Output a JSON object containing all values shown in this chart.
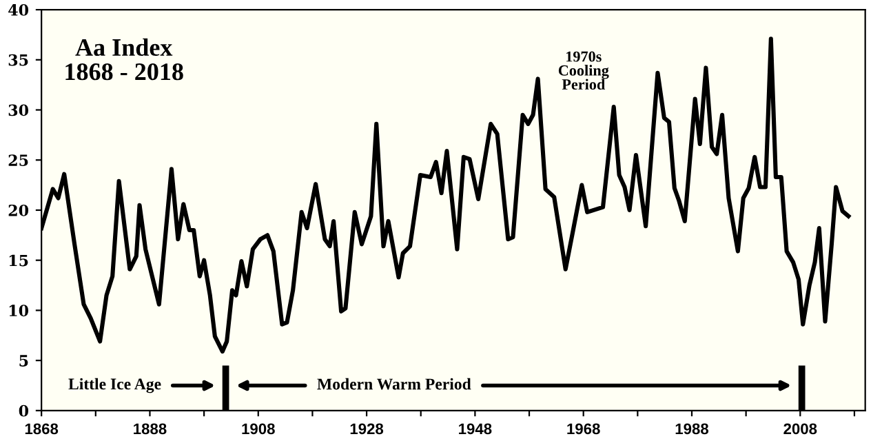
{
  "chart_data": {
    "type": "line",
    "title": "Aa Index\n1868 - 2018",
    "x": [
      1868,
      1870.1,
      1871.1,
      1872.2,
      1874.1,
      1875.8,
      1877.1,
      1878.8,
      1880,
      1881.1,
      1882.3,
      1884.3,
      1885.5,
      1886.1,
      1887.2,
      1889.7,
      1892,
      1893.2,
      1894.2,
      1895.3,
      1896.1,
      1897.2,
      1898,
      1899.1,
      1900,
      1901.4,
      1902.2,
      1903.2,
      1903.9,
      1904.9,
      1905.9,
      1907,
      1908.4,
      1909.7,
      1910.8,
      1912.4,
      1913.3,
      1914.4,
      1916,
      1917,
      1918.6,
      1920.3,
      1921.2,
      1921.9,
      1923.3,
      1924.1,
      1925.8,
      1927.1,
      1928.8,
      1929.8,
      1931.1,
      1932,
      1933.9,
      1934.7,
      1936,
      1937.9,
      1939.8,
      1940.8,
      1941.8,
      1942.8,
      1944.7,
      1945.9,
      1947,
      1948.6,
      1950.9,
      1952.1,
      1954.1,
      1955,
      1956.8,
      1957.8,
      1958.7,
      1959.6,
      1961,
      1962.6,
      1964.7,
      1966.1,
      1967.7,
      1968.7,
      1971.6,
      1973.6,
      1974.6,
      1975.6,
      1976.5,
      1977.7,
      1979.5,
      1981.7,
      1982.9,
      1983.8,
      1984.8,
      1985.6,
      1986.7,
      1988.6,
      1989.5,
      1990.6,
      1991.7,
      1992.6,
      1993.6,
      1994.8,
      1996.5,
      1997.5,
      1998.5,
      1999.6,
      2000.6,
      2001.6,
      2002.6,
      2003.5,
      2004.5,
      2005.5,
      2006.7,
      2007.7,
      2008.5,
      2009.7,
      2010.7,
      2011.5,
      2012.6,
      2013.8,
      2014.6,
      2015.8,
      2016.9
    ],
    "series": [
      {
        "color": "#000000",
        "values": [
          18.2,
          22.1,
          21.2,
          23.6,
          16.6,
          10.6,
          9.2,
          6.9,
          11.5,
          13.4,
          22.9,
          14.1,
          15.4,
          20.5,
          16.1,
          10.6,
          24.1,
          17.1,
          20.6,
          18.0,
          18.0,
          13.4,
          15.0,
          11.5,
          7.4,
          5.9,
          6.9,
          12.0,
          11.5,
          14.9,
          12.4,
          16.1,
          17.1,
          17.5,
          15.9,
          8.6,
          8.8,
          12.0,
          19.8,
          18.2,
          22.6,
          17.1,
          16.4,
          18.9,
          9.9,
          10.2,
          19.8,
          16.6,
          19.4,
          28.6,
          16.4,
          18.9,
          13.3,
          15.7,
          16.4,
          23.5,
          23.3,
          24.8,
          21.7,
          25.9,
          16.1,
          25.3,
          25.1,
          21.1,
          28.6,
          27.6,
          17.1,
          17.3,
          29.5,
          28.6,
          29.5,
          33.1,
          22.1,
          21.3,
          14.1,
          18.0,
          22.5,
          19.8,
          20.3,
          30.3,
          23.5,
          22.3,
          20.0,
          25.5,
          18.4,
          33.7,
          29.2,
          28.8,
          22.2,
          21.0,
          18.9,
          31.1,
          26.6,
          34.2,
          26.3,
          25.6,
          29.5,
          21.2,
          15.9,
          21.2,
          22.2,
          25.3,
          22.3,
          22.3,
          37.1,
          23.3,
          23.3,
          15.9,
          14.8,
          13.1,
          8.6,
          12.5,
          14.8,
          18.2,
          8.9,
          16.6,
          22.3,
          19.9,
          19.4
        ]
      }
    ],
    "xlim": [
      1868,
      2020
    ],
    "ylim": [
      0,
      40
    ],
    "xticks": [
      1868,
      {
        "value": 1878,
        "label": null
      },
      1888,
      {
        "value": 1898,
        "label": null
      },
      1908,
      {
        "value": 1918,
        "label": null
      },
      1928,
      {
        "value": 1938,
        "label": null
      },
      1948,
      {
        "value": 1958,
        "label": null
      },
      1968,
      {
        "value": 1978,
        "label": null
      },
      1988,
      {
        "value": 1998,
        "label": null
      },
      2008,
      {
        "value": 2018,
        "label": null
      }
    ],
    "yticks": [
      0,
      5,
      10,
      15,
      20,
      25,
      30,
      35,
      40
    ],
    "ref_lines": [
      {
        "axis": "x",
        "value": 1902,
        "color": "#000000"
      },
      {
        "axis": "x",
        "value": 2008.3,
        "color": "#000000"
      }
    ],
    "annotations": [
      "Little Ice Age",
      "Modern Warm Period",
      "1970s\nCooling\nPeriod"
    ],
    "grid": false,
    "legend": false,
    "marker": "none",
    "line_style": "solid"
  }
}
